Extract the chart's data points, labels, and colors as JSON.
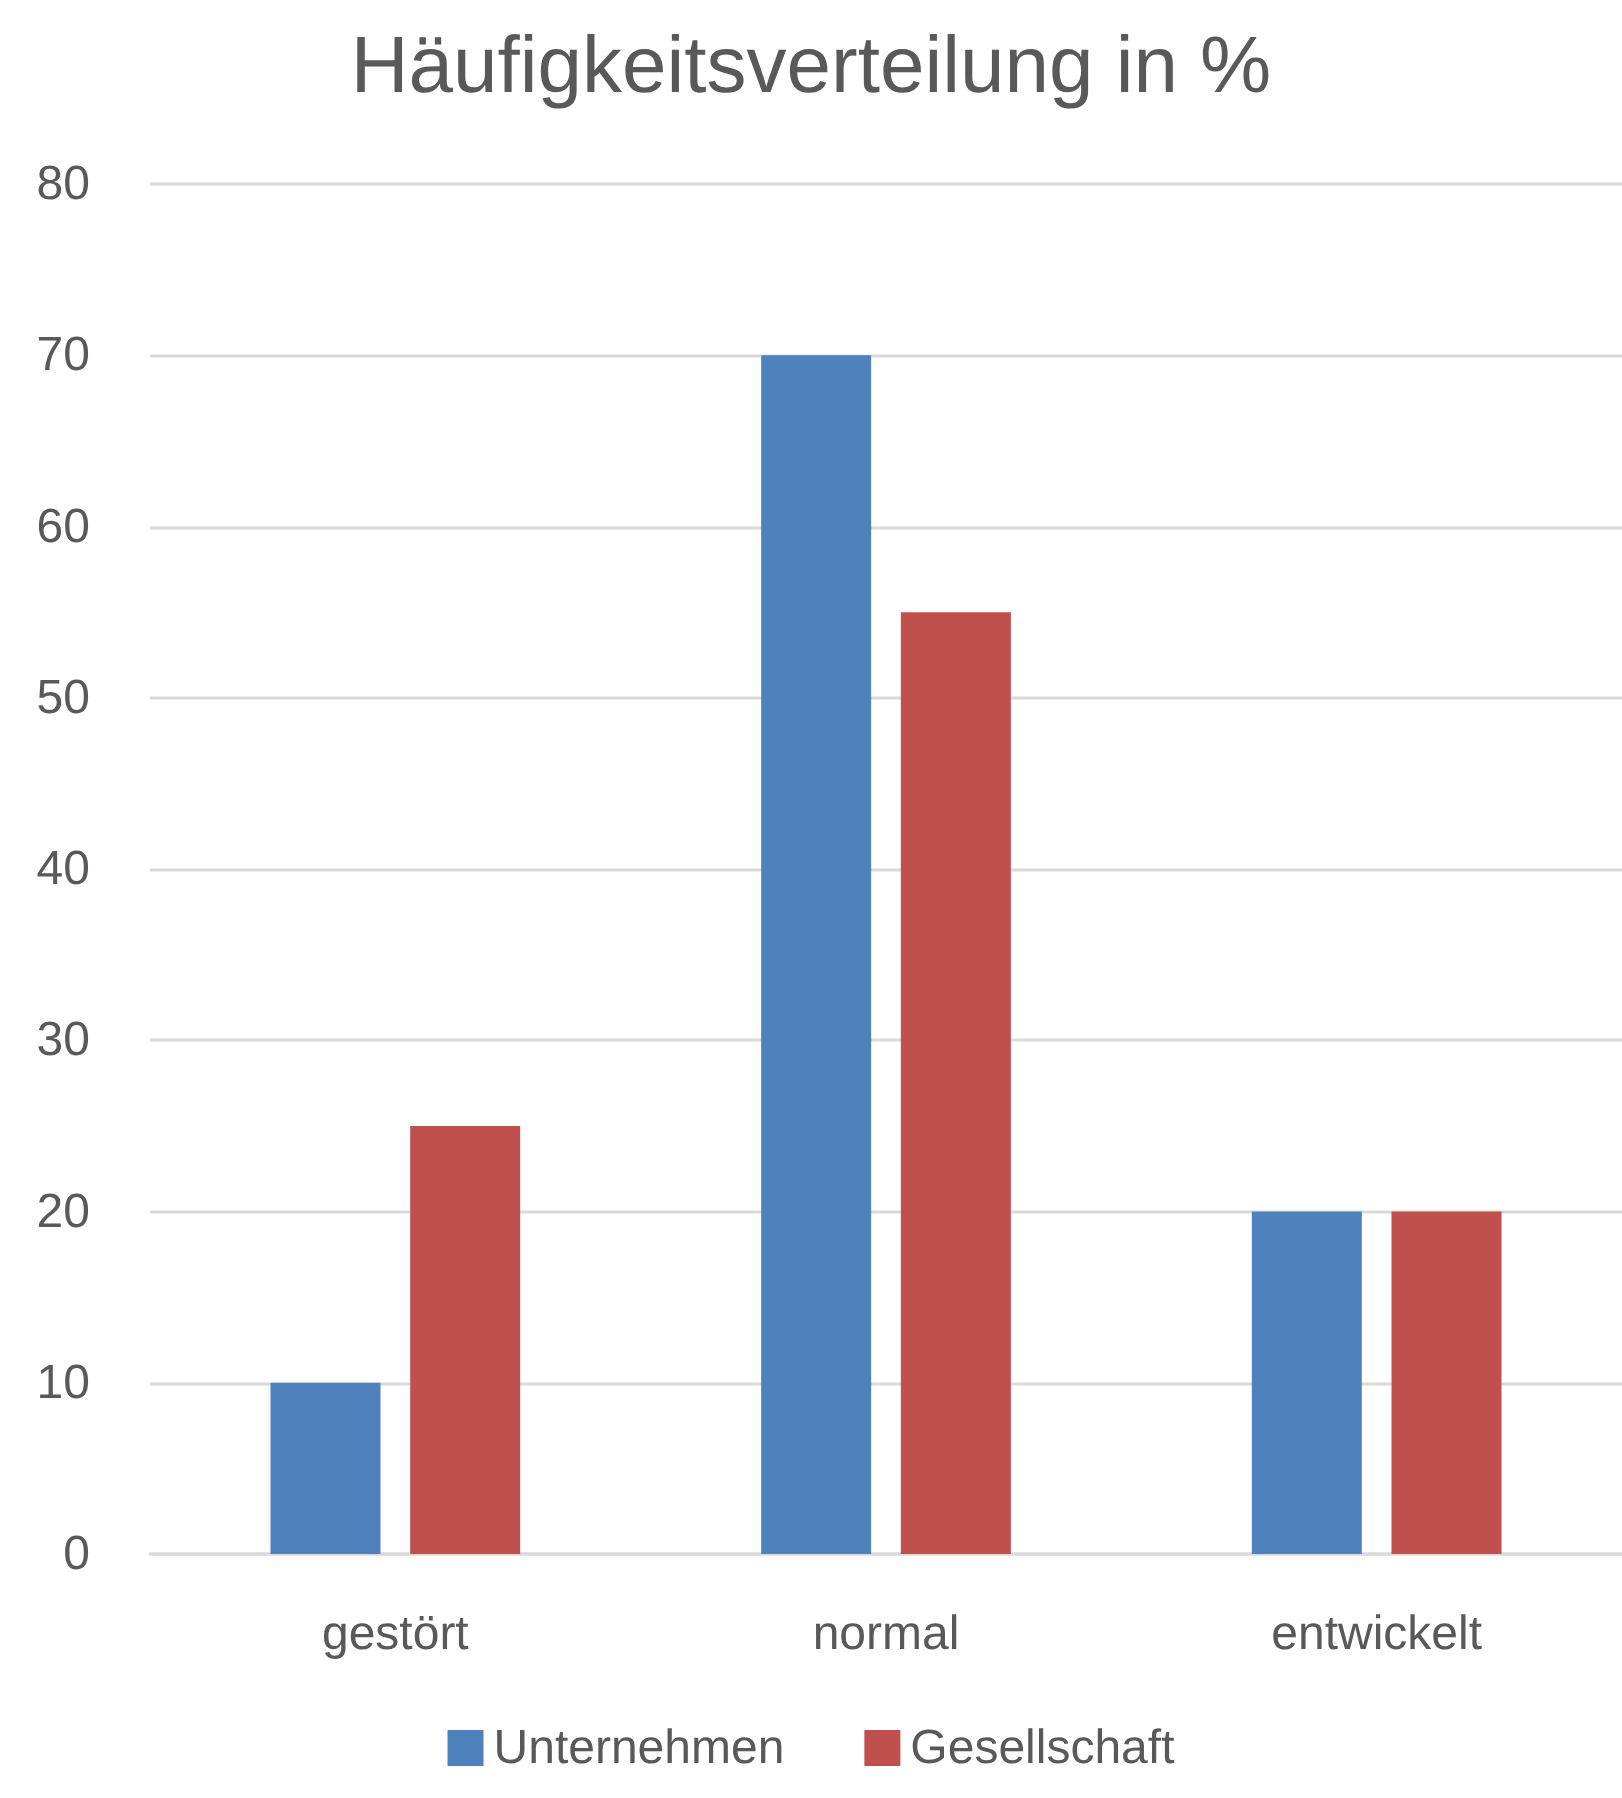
{
  "chart_data": {
    "type": "bar",
    "title": "Häufigkeitsverteilung in %",
    "categories": [
      "gestört",
      "normal",
      "entwickelt"
    ],
    "series": [
      {
        "name": "Unternehmen",
        "color": "#4f81bd",
        "values": [
          10,
          70,
          20
        ]
      },
      {
        "name": "Gesellschaft",
        "color": "#c0504d",
        "values": [
          25,
          55,
          20
        ]
      }
    ],
    "ylim": [
      0,
      80
    ],
    "yticks": [
      0,
      10,
      20,
      30,
      40,
      50,
      60,
      70,
      80
    ],
    "grid": "y",
    "legend": "bottom"
  }
}
